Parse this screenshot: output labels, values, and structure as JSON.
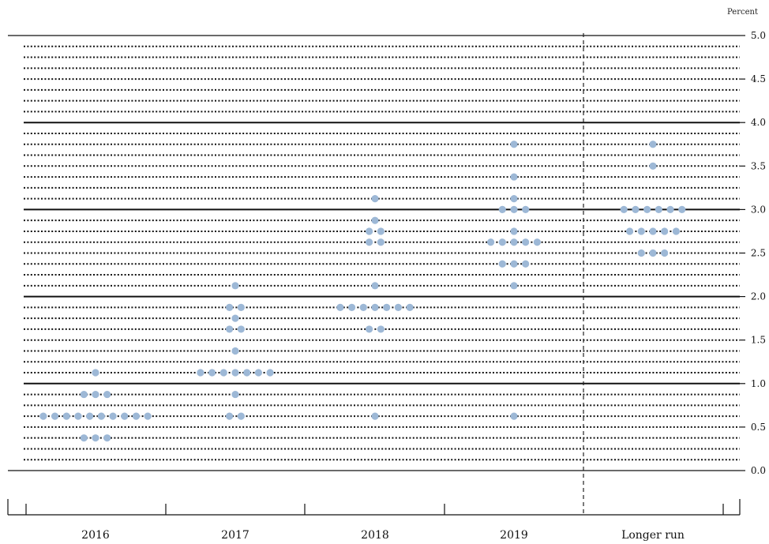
{
  "chart_data": {
    "type": "scatter",
    "unit_label": "Percent",
    "title": "",
    "xlabel": "",
    "ylabel": "",
    "ylim": [
      0,
      5
    ],
    "y_ticks": [
      "0.0",
      "0.5",
      "1.0",
      "1.5",
      "2.0",
      "2.5",
      "3.0",
      "3.5",
      "4.0",
      "4.5",
      "5.0"
    ],
    "categories": [
      "2016",
      "2017",
      "2018",
      "2019",
      "Longer run"
    ],
    "dot_color": "#9db8d6",
    "grid": "solid at whole percents, dotted at each 0.125",
    "dots": [
      {
        "category": "2016",
        "rows": [
          {
            "value": 1.125,
            "count": 1
          },
          {
            "value": 0.875,
            "count": 3
          },
          {
            "value": 0.625,
            "count": 10
          },
          {
            "value": 0.375,
            "count": 3
          }
        ]
      },
      {
        "category": "2017",
        "rows": [
          {
            "value": 2.125,
            "count": 1
          },
          {
            "value": 1.875,
            "count": 2
          },
          {
            "value": 1.75,
            "count": 1
          },
          {
            "value": 1.625,
            "count": 2
          },
          {
            "value": 1.375,
            "count": 1
          },
          {
            "value": 1.125,
            "count": 7
          },
          {
            "value": 0.875,
            "count": 1
          },
          {
            "value": 0.625,
            "count": 2
          }
        ]
      },
      {
        "category": "2018",
        "rows": [
          {
            "value": 3.125,
            "count": 1
          },
          {
            "value": 2.875,
            "count": 1
          },
          {
            "value": 2.75,
            "count": 2
          },
          {
            "value": 2.625,
            "count": 2
          },
          {
            "value": 2.125,
            "count": 1
          },
          {
            "value": 1.875,
            "count": 7
          },
          {
            "value": 1.625,
            "count": 2
          },
          {
            "value": 0.625,
            "count": 1
          }
        ]
      },
      {
        "category": "2019",
        "rows": [
          {
            "value": 3.75,
            "count": 1
          },
          {
            "value": 3.375,
            "count": 1
          },
          {
            "value": 3.125,
            "count": 1
          },
          {
            "value": 3.0,
            "count": 3
          },
          {
            "value": 2.75,
            "count": 1
          },
          {
            "value": 2.625,
            "count": 5
          },
          {
            "value": 2.375,
            "count": 3
          },
          {
            "value": 2.125,
            "count": 1
          },
          {
            "value": 0.625,
            "count": 1
          }
        ]
      },
      {
        "category": "Longer run",
        "rows": [
          {
            "value": 3.75,
            "count": 1
          },
          {
            "value": 3.5,
            "count": 1
          },
          {
            "value": 3.0,
            "count": 6
          },
          {
            "value": 2.75,
            "count": 5
          },
          {
            "value": 2.5,
            "count": 3
          }
        ]
      }
    ]
  }
}
